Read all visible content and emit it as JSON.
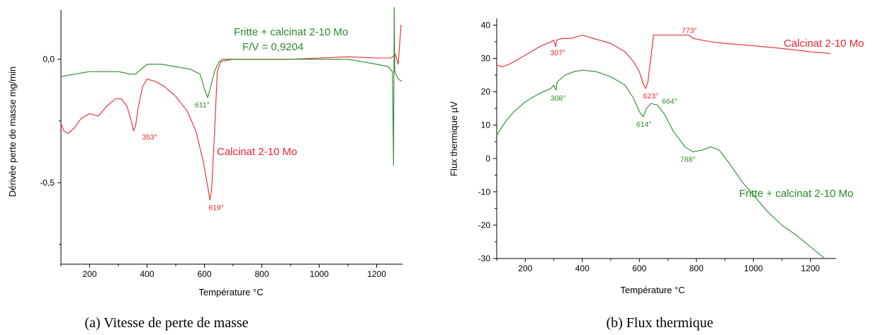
{
  "chart_data": [
    {
      "type": "line",
      "caption": "(a) Vitesse de perte de masse",
      "xlabel": "Température °C",
      "ylabel": "Dérivée perte de masse mg/min",
      "xlim": [
        100,
        1290
      ],
      "ylim": [
        -0.83,
        0.2
      ],
      "xticks": [
        200,
        400,
        600,
        800,
        1000,
        1200
      ],
      "yticks": [
        0.0,
        -0.5
      ],
      "ytick_labels": [
        "0,0",
        "-0,5"
      ],
      "grid": false,
      "series": [
        {
          "name": "Calcinat 2-10 Mo",
          "color": "#e8262b",
          "points": [
            [
              100,
              -0.26
            ],
            [
              110,
              -0.29
            ],
            [
              125,
              -0.3
            ],
            [
              145,
              -0.28
            ],
            [
              170,
              -0.24
            ],
            [
              200,
              -0.22
            ],
            [
              230,
              -0.23
            ],
            [
              260,
              -0.19
            ],
            [
              290,
              -0.16
            ],
            [
              310,
              -0.16
            ],
            [
              330,
              -0.19
            ],
            [
              345,
              -0.25
            ],
            [
              353,
              -0.29
            ],
            [
              360,
              -0.27
            ],
            [
              370,
              -0.19
            ],
            [
              385,
              -0.11
            ],
            [
              400,
              -0.08
            ],
            [
              430,
              -0.09
            ],
            [
              460,
              -0.11
            ],
            [
              500,
              -0.15
            ],
            [
              540,
              -0.21
            ],
            [
              570,
              -0.29
            ],
            [
              595,
              -0.41
            ],
            [
              612,
              -0.52
            ],
            [
              619,
              -0.57
            ],
            [
              625,
              -0.53
            ],
            [
              635,
              -0.3
            ],
            [
              645,
              -0.05
            ],
            [
              660,
              0.0
            ],
            [
              700,
              0.0
            ],
            [
              800,
              0.0
            ],
            [
              900,
              0.0
            ],
            [
              1000,
              0.005
            ],
            [
              1100,
              0.01
            ],
            [
              1200,
              0.005
            ],
            [
              1250,
              0.005
            ],
            [
              1265,
              0.02
            ],
            [
              1275,
              -0.02
            ],
            [
              1285,
              0.14
            ]
          ]
        },
        {
          "name": "Fritte + calcinat 2-10 Mo",
          "subtitle": "F/V = 0,9204",
          "color": "#2a8a2a",
          "points": [
            [
              100,
              -0.07
            ],
            [
              150,
              -0.06
            ],
            [
              200,
              -0.05
            ],
            [
              250,
              -0.05
            ],
            [
              300,
              -0.05
            ],
            [
              340,
              -0.06
            ],
            [
              360,
              -0.06
            ],
            [
              380,
              -0.04
            ],
            [
              400,
              -0.02
            ],
            [
              450,
              -0.02
            ],
            [
              500,
              -0.03
            ],
            [
              550,
              -0.04
            ],
            [
              585,
              -0.06
            ],
            [
              600,
              -0.12
            ],
            [
              611,
              -0.155
            ],
            [
              620,
              -0.12
            ],
            [
              635,
              -0.05
            ],
            [
              650,
              -0.01
            ],
            [
              700,
              0.0
            ],
            [
              800,
              0.0
            ],
            [
              900,
              0.0
            ],
            [
              1000,
              0.0
            ],
            [
              1100,
              0.0
            ],
            [
              1200,
              -0.02
            ],
            [
              1240,
              -0.03
            ],
            [
              1255,
              -0.05
            ],
            [
              1259,
              -0.43
            ],
            [
              1261,
              0.21
            ],
            [
              1263,
              -0.05
            ],
            [
              1275,
              -0.08
            ],
            [
              1288,
              -0.09
            ]
          ]
        }
      ],
      "annotations": [
        {
          "text": "353°",
          "x": 353,
          "y": -0.29,
          "color": "#e8262b"
        },
        {
          "text": "619°",
          "x": 619,
          "y": -0.57,
          "color": "#e8262b"
        },
        {
          "text": "611°",
          "x": 611,
          "y": -0.155,
          "color": "#2a8a2a"
        }
      ]
    },
    {
      "type": "line",
      "caption": "(b) Flux thermique",
      "xlabel": "Température °C",
      "ylabel": "Flux thermique µV",
      "xlim": [
        100,
        1290
      ],
      "ylim": [
        -30,
        42
      ],
      "xticks": [
        200,
        400,
        600,
        800,
        1000,
        1200
      ],
      "yticks": [
        40,
        30,
        20,
        10,
        0,
        -10,
        -20,
        -30
      ],
      "ytick_labels": [
        "40",
        "30",
        "20",
        "10",
        "0",
        "-10",
        "-20",
        "-30"
      ],
      "grid": false,
      "series": [
        {
          "name": "Calcinat 2-10 Mo",
          "color": "#e8262b",
          "points": [
            [
              100,
              28
            ],
            [
              120,
              27.5
            ],
            [
              150,
              28.5
            ],
            [
              200,
              31
            ],
            [
              250,
              33.5
            ],
            [
              290,
              35
            ],
            [
              300,
              35.5
            ],
            [
              305,
              34
            ],
            [
              307,
              33.5
            ],
            [
              310,
              35.5
            ],
            [
              330,
              36
            ],
            [
              360,
              36
            ],
            [
              400,
              37
            ],
            [
              440,
              36
            ],
            [
              500,
              34.5
            ],
            [
              550,
              32
            ],
            [
              580,
              29
            ],
            [
              600,
              26
            ],
            [
              615,
              22
            ],
            [
              623,
              21
            ],
            [
              630,
              23
            ],
            [
              640,
              30
            ],
            [
              650,
              37
            ],
            [
              700,
              37
            ],
            [
              750,
              37
            ],
            [
              773,
              37
            ],
            [
              790,
              36
            ],
            [
              850,
              35
            ],
            [
              900,
              34.5
            ],
            [
              1000,
              33.8
            ],
            [
              1100,
              33
            ],
            [
              1200,
              32
            ],
            [
              1270,
              31.5
            ]
          ]
        },
        {
          "name": "Fritte + calcinat 2-10 Mo",
          "color": "#2a8a2a",
          "points": [
            [
              100,
              7
            ],
            [
              130,
              11
            ],
            [
              160,
              14
            ],
            [
              200,
              17
            ],
            [
              250,
              19.5
            ],
            [
              290,
              21
            ],
            [
              300,
              22
            ],
            [
              305,
              21
            ],
            [
              308,
              20.5
            ],
            [
              312,
              23
            ],
            [
              340,
              25
            ],
            [
              370,
              26
            ],
            [
              400,
              26.5
            ],
            [
              450,
              26
            ],
            [
              500,
              24.5
            ],
            [
              550,
              22
            ],
            [
              580,
              18
            ],
            [
              600,
              14
            ],
            [
              614,
              12.5
            ],
            [
              625,
              15
            ],
            [
              640,
              16.5
            ],
            [
              664,
              16
            ],
            [
              690,
              13
            ],
            [
              720,
              8
            ],
            [
              760,
              3.5
            ],
            [
              788,
              2
            ],
            [
              820,
              2.5
            ],
            [
              850,
              3.5
            ],
            [
              880,
              2.5
            ],
            [
              920,
              -2
            ],
            [
              960,
              -7
            ],
            [
              1000,
              -11
            ],
            [
              1050,
              -16
            ],
            [
              1100,
              -20
            ],
            [
              1150,
              -23
            ],
            [
              1200,
              -26.5
            ],
            [
              1250,
              -30
            ]
          ]
        }
      ],
      "annotations": [
        {
          "text": "307°",
          "x": 307,
          "y": 33.5,
          "color": "#e8262b"
        },
        {
          "text": "623°",
          "x": 623,
          "y": 21,
          "color": "#e8262b"
        },
        {
          "text": "773°",
          "x": 773,
          "y": 37,
          "color": "#e8262b"
        },
        {
          "text": "308°",
          "x": 308,
          "y": 20.5,
          "color": "#2a8a2a"
        },
        {
          "text": "614°",
          "x": 614,
          "y": 12.5,
          "color": "#2a8a2a"
        },
        {
          "text": "664°",
          "x": 664,
          "y": 16,
          "color": "#2a8a2a"
        },
        {
          "text": "788°",
          "x": 788,
          "y": 2,
          "color": "#2a8a2a"
        }
      ]
    }
  ]
}
